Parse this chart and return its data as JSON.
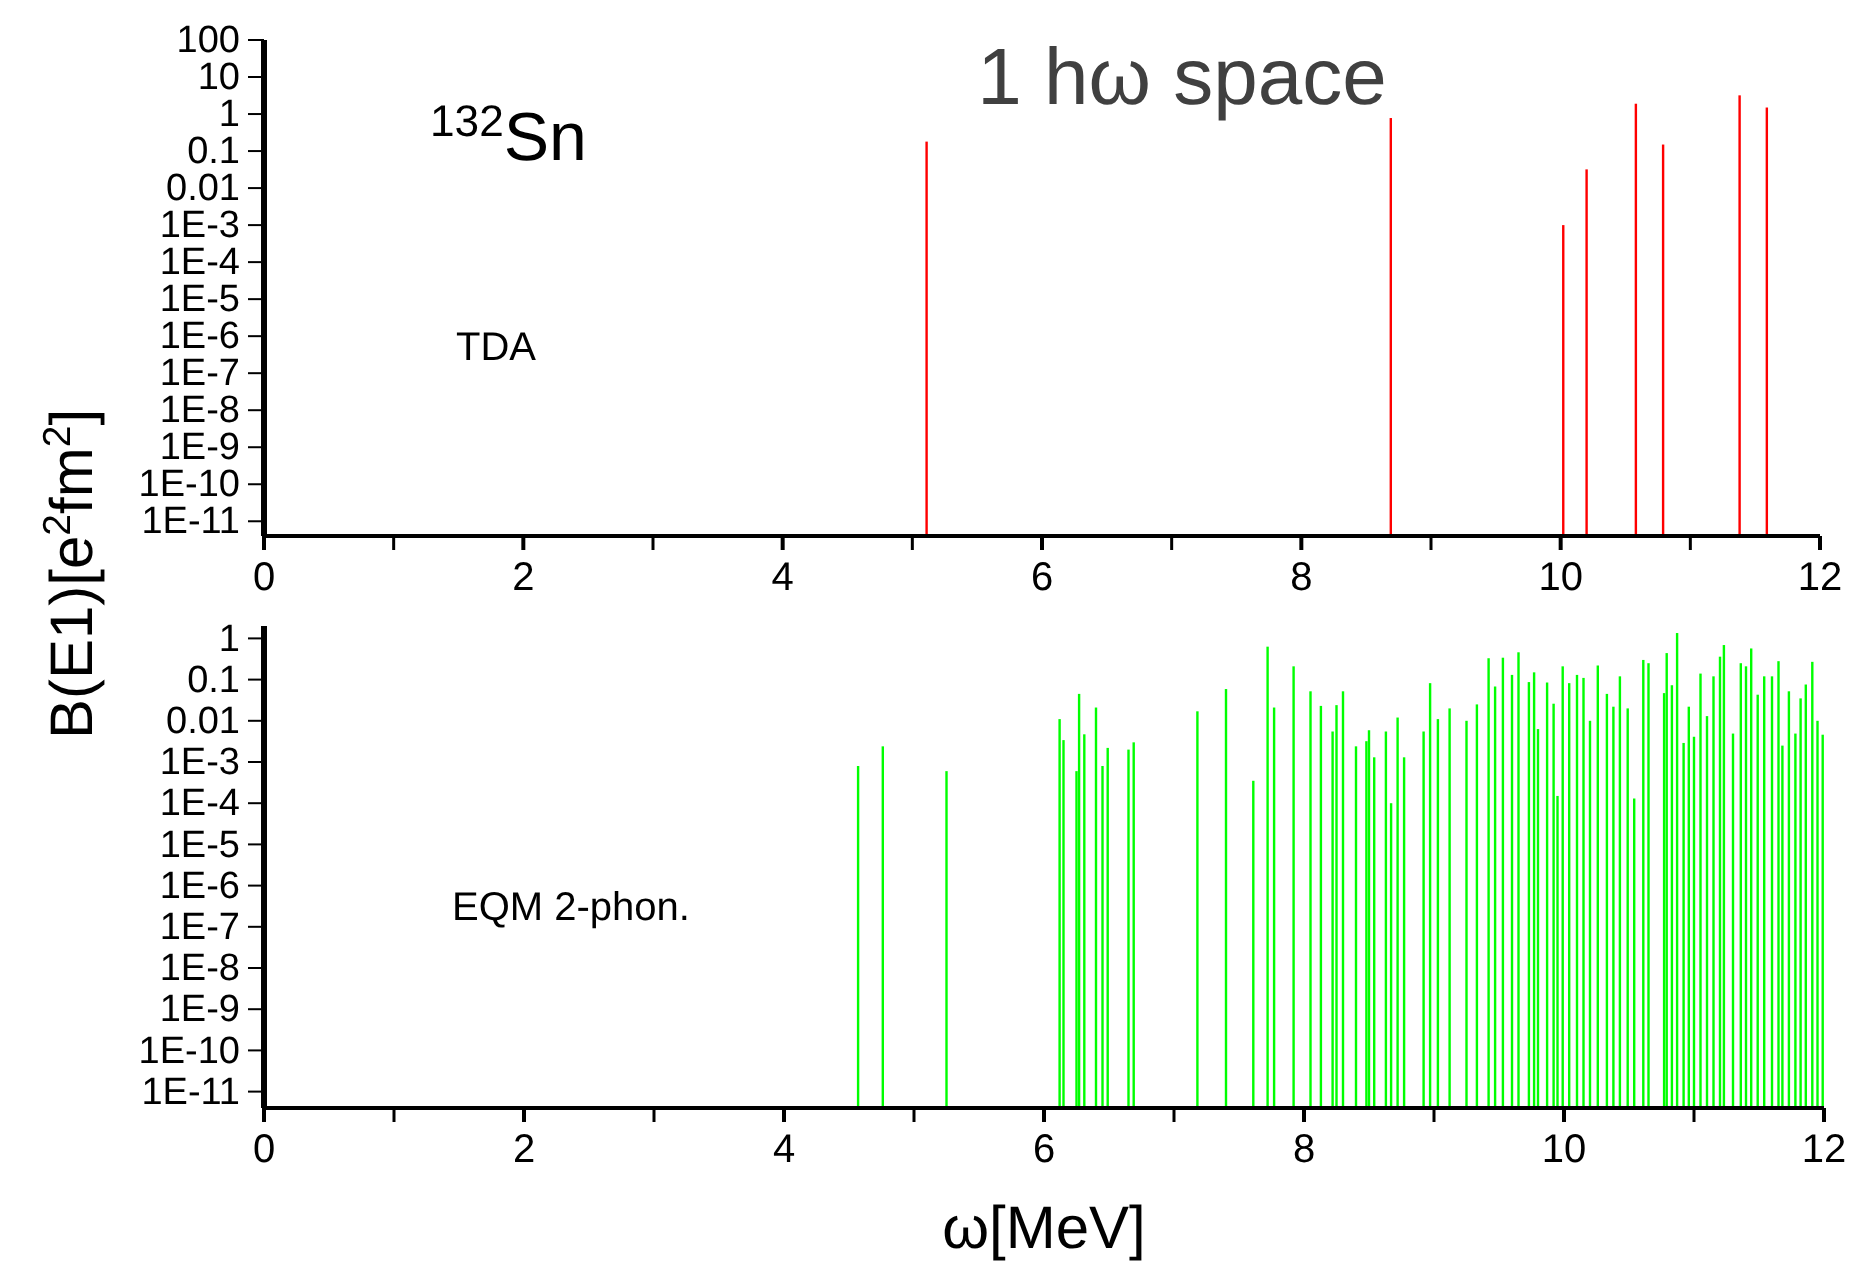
{
  "chart_data": [
    {
      "type": "bar",
      "title": "1 hω space",
      "ylabel": "B(E1)[e$^{2}$fm$^{2}$]",
      "annotations": [
        "$^{132}$Sn",
        "TDA"
      ],
      "log": "y",
      "grid": false,
      "x": [
        5.11,
        8.69,
        10.02,
        10.2,
        10.58,
        10.79,
        11.38,
        11.59
      ],
      "series": [
        {
          "color": "#ff0000",
          "values": [
            0.18,
            0.78,
            0.001,
            0.032,
            1.9,
            0.15,
            3.2,
            1.5
          ]
        }
      ],
      "xlim": [
        0,
        12
      ],
      "xticks": [
        0,
        {
          "value": 1,
          "label": null
        },
        2,
        {
          "value": 3,
          "label": null
        },
        4,
        {
          "value": 5,
          "label": null
        },
        6,
        {
          "value": 7,
          "label": null
        },
        8,
        {
          "value": 9,
          "label": null
        },
        10,
        {
          "value": 11,
          "label": null
        },
        12
      ],
      "ylim": [
        4e-12,
        100
      ],
      "yticks": [
        100,
        10,
        1,
        0.1,
        0.01,
        {
          "value": 0.001,
          "label": "1E-3"
        },
        {
          "value": 0.0001,
          "label": "1E-4"
        },
        {
          "value": 1e-05,
          "label": "1E-5"
        },
        {
          "value": 1e-06,
          "label": "1E-6"
        },
        {
          "value": 1e-07,
          "label": "1E-7"
        },
        {
          "value": 1e-08,
          "label": "1E-8"
        },
        {
          "value": 1e-09,
          "label": "1E-9"
        },
        {
          "value": 1e-10,
          "label": "1E-10"
        },
        {
          "value": 1e-11,
          "label": "1E-11"
        }
      ]
    },
    {
      "type": "bar",
      "xlabel": "ω[MeV]",
      "annotations": [
        "EQM 2-phon."
      ],
      "log": "y",
      "grid": false,
      "x": [
        4.57,
        4.76,
        5.25,
        6.12,
        6.15,
        6.25,
        6.27,
        6.31,
        6.4,
        6.45,
        6.49,
        6.65,
        6.69,
        7.18,
        7.4,
        7.61,
        7.72,
        7.77,
        7.92,
        8.05,
        8.13,
        8.22,
        8.25,
        8.3,
        8.4,
        8.48,
        8.5,
        8.54,
        8.63,
        8.67,
        8.72,
        8.77,
        8.92,
        8.97,
        9.03,
        9.12,
        9.25,
        9.33,
        9.42,
        9.47,
        9.53,
        9.6,
        9.65,
        9.73,
        9.77,
        9.8,
        9.87,
        9.92,
        9.95,
        9.99,
        10.04,
        10.1,
        10.15,
        10.2,
        10.26,
        10.33,
        10.38,
        10.43,
        10.49,
        10.54,
        10.61,
        10.65,
        10.77,
        10.79,
        10.83,
        10.87,
        10.92,
        10.96,
        11.0,
        11.05,
        11.1,
        11.15,
        11.2,
        11.23,
        11.3,
        11.36,
        11.4,
        11.44,
        11.49,
        11.54,
        11.6,
        11.65,
        11.68,
        11.73,
        11.78,
        11.82,
        11.86,
        11.91,
        11.95,
        11.99
      ],
      "series": [
        {
          "color": "#00ff00",
          "values": [
            0.0008,
            0.0024,
            0.0006,
            0.011,
            0.0034,
            0.0006,
            0.045,
            0.0047,
            0.021,
            0.0008,
            0.0022,
            0.002,
            0.003,
            0.017,
            0.059,
            0.00035,
            0.63,
            0.021,
            0.21,
            0.052,
            0.023,
            0.0055,
            0.024,
            0.052,
            0.0024,
            0.0032,
            0.0059,
            0.0013,
            0.0055,
            0.0001,
            0.012,
            0.0013,
            0.0055,
            0.082,
            0.011,
            0.02,
            0.01,
            0.025,
            0.33,
            0.068,
            0.34,
            0.13,
            0.46,
            0.087,
            0.15,
            0.0063,
            0.085,
            0.026,
            0.00015,
            0.21,
            0.082,
            0.13,
            0.11,
            0.01,
            0.22,
            0.045,
            0.022,
            0.12,
            0.02,
            0.00013,
            0.3,
            0.25,
            0.047,
            0.44,
            0.073,
            1.35,
            0.0029,
            0.022,
            0.0041,
            0.14,
            0.013,
            0.12,
            0.36,
            0.69,
            0.0049,
            0.25,
            0.21,
            0.57,
            0.043,
            0.12,
            0.12,
            0.28,
            0.0025,
            0.052,
            0.0049,
            0.035,
            0.076,
            0.27,
            0.01,
            0.0046
          ]
        }
      ],
      "xlim": [
        0,
        12
      ],
      "xticks": [
        0,
        {
          "value": 1,
          "label": null
        },
        2,
        {
          "value": 3,
          "label": null
        },
        4,
        {
          "value": 5,
          "label": null
        },
        6,
        {
          "value": 7,
          "label": null
        },
        8,
        {
          "value": 9,
          "label": null
        },
        10,
        {
          "value": 11,
          "label": null
        },
        12
      ],
      "ylim": [
        4e-12,
        2
      ],
      "yticks": [
        1,
        0.1,
        0.01,
        {
          "value": 0.001,
          "label": "1E-3"
        },
        {
          "value": 0.0001,
          "label": "1E-4"
        },
        {
          "value": 1e-05,
          "label": "1E-5"
        },
        {
          "value": 1e-06,
          "label": "1E-6"
        },
        {
          "value": 1e-07,
          "label": "1E-7"
        },
        {
          "value": 1e-08,
          "label": "1E-8"
        },
        {
          "value": 1e-09,
          "label": "1E-9"
        },
        {
          "value": 1e-10,
          "label": "1E-10"
        },
        {
          "value": 1e-11,
          "label": "1E-11"
        }
      ]
    }
  ]
}
